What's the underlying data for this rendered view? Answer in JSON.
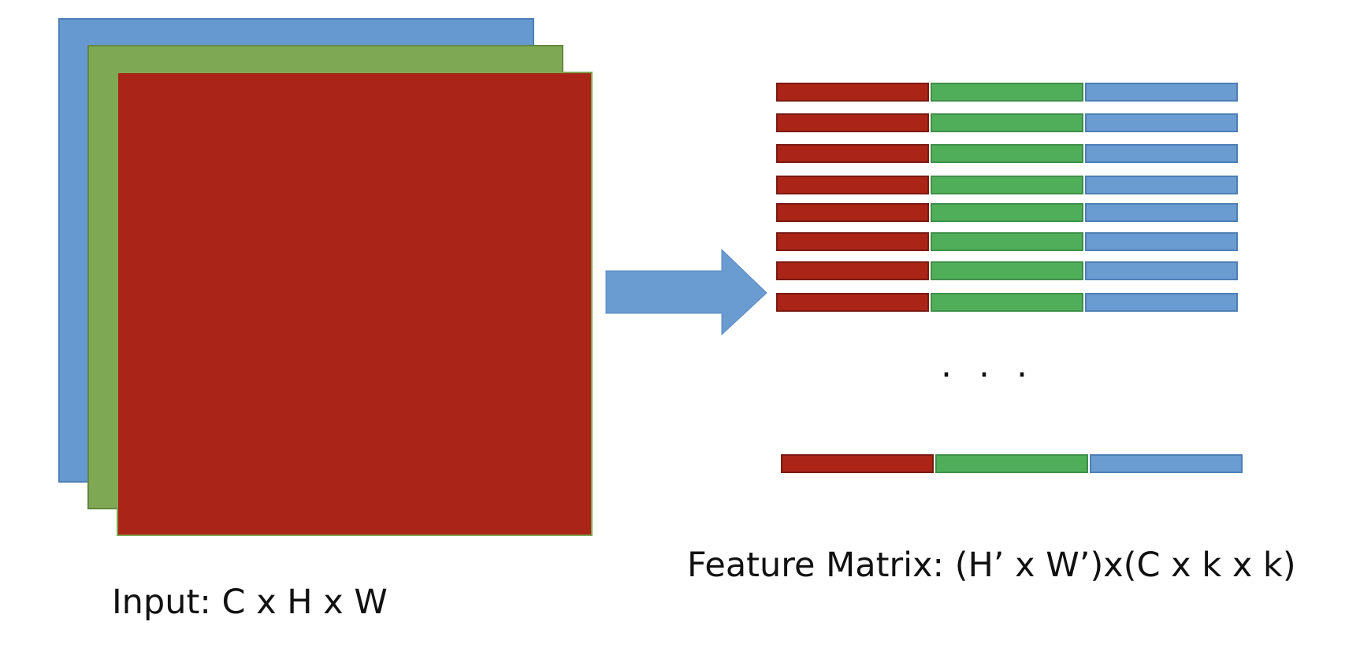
{
  "input_label": "Input: C x H x W",
  "output_label": "Feature Matrix: (H’ x W’)x(C x k x k)",
  "ellipsis": "· · ·",
  "colors": {
    "channel_1": "#ab2418",
    "channel_2": "#7ea854",
    "channel_3": "#6699cf",
    "row_green": "#50ae5a",
    "row_blue": "#6a9bd1",
    "arrow": "#6a9bd1"
  },
  "input_channels": [
    "channel_3",
    "channel_2",
    "channel_1"
  ],
  "matrix_row_segments": [
    "channel_1",
    "channel_2",
    "channel_3"
  ],
  "matrix_visible_rows_top": 8,
  "matrix_visible_rows_bottom": 1
}
